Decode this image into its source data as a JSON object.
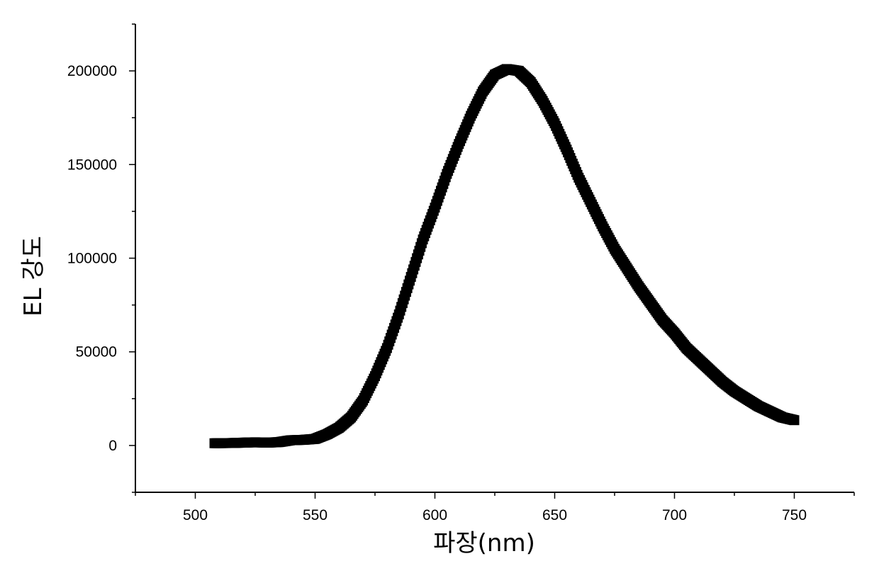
{
  "chart_data": {
    "type": "scatter",
    "title": "",
    "xlabel": "파장(nm)",
    "ylabel": "EL 강도",
    "xlim": [
      475,
      775
    ],
    "ylim": [
      -25000,
      225000
    ],
    "xticks": [
      500,
      550,
      600,
      650,
      700,
      750
    ],
    "xtick_labels": [
      "500",
      "550",
      "600",
      "650",
      "700",
      "750"
    ],
    "yticks": [
      0,
      50000,
      100000,
      150000,
      200000
    ],
    "ytick_labels": [
      "0",
      "50000",
      "100000",
      "150000",
      "200000"
    ],
    "grid": false,
    "legend": "none",
    "marker_color": "#000000",
    "series": [
      {
        "marker": "square",
        "x": [
          508,
          515,
          520,
          525,
          530,
          535,
          540,
          545,
          550,
          555,
          560,
          565,
          570,
          575,
          580,
          585,
          590,
          595,
          600,
          605,
          610,
          615,
          620,
          625,
          630,
          635,
          640,
          645,
          650,
          655,
          660,
          665,
          670,
          675,
          680,
          685,
          690,
          695,
          700,
          705,
          710,
          715,
          720,
          725,
          730,
          735,
          740,
          745,
          750
        ],
        "y": [
          1200,
          1300,
          1500,
          1700,
          1500,
          1800,
          2800,
          3000,
          3500,
          6000,
          9500,
          15000,
          24000,
          37000,
          52000,
          70000,
          90000,
          110000,
          127000,
          145000,
          161000,
          176000,
          189000,
          198000,
          201000,
          200000,
          194000,
          184000,
          172000,
          158000,
          143000,
          130000,
          117000,
          105000,
          95000,
          85000,
          76000,
          67000,
          60000,
          52000,
          46000,
          40000,
          34000,
          29000,
          25000,
          21000,
          18000,
          15000,
          13500
        ]
      }
    ]
  }
}
